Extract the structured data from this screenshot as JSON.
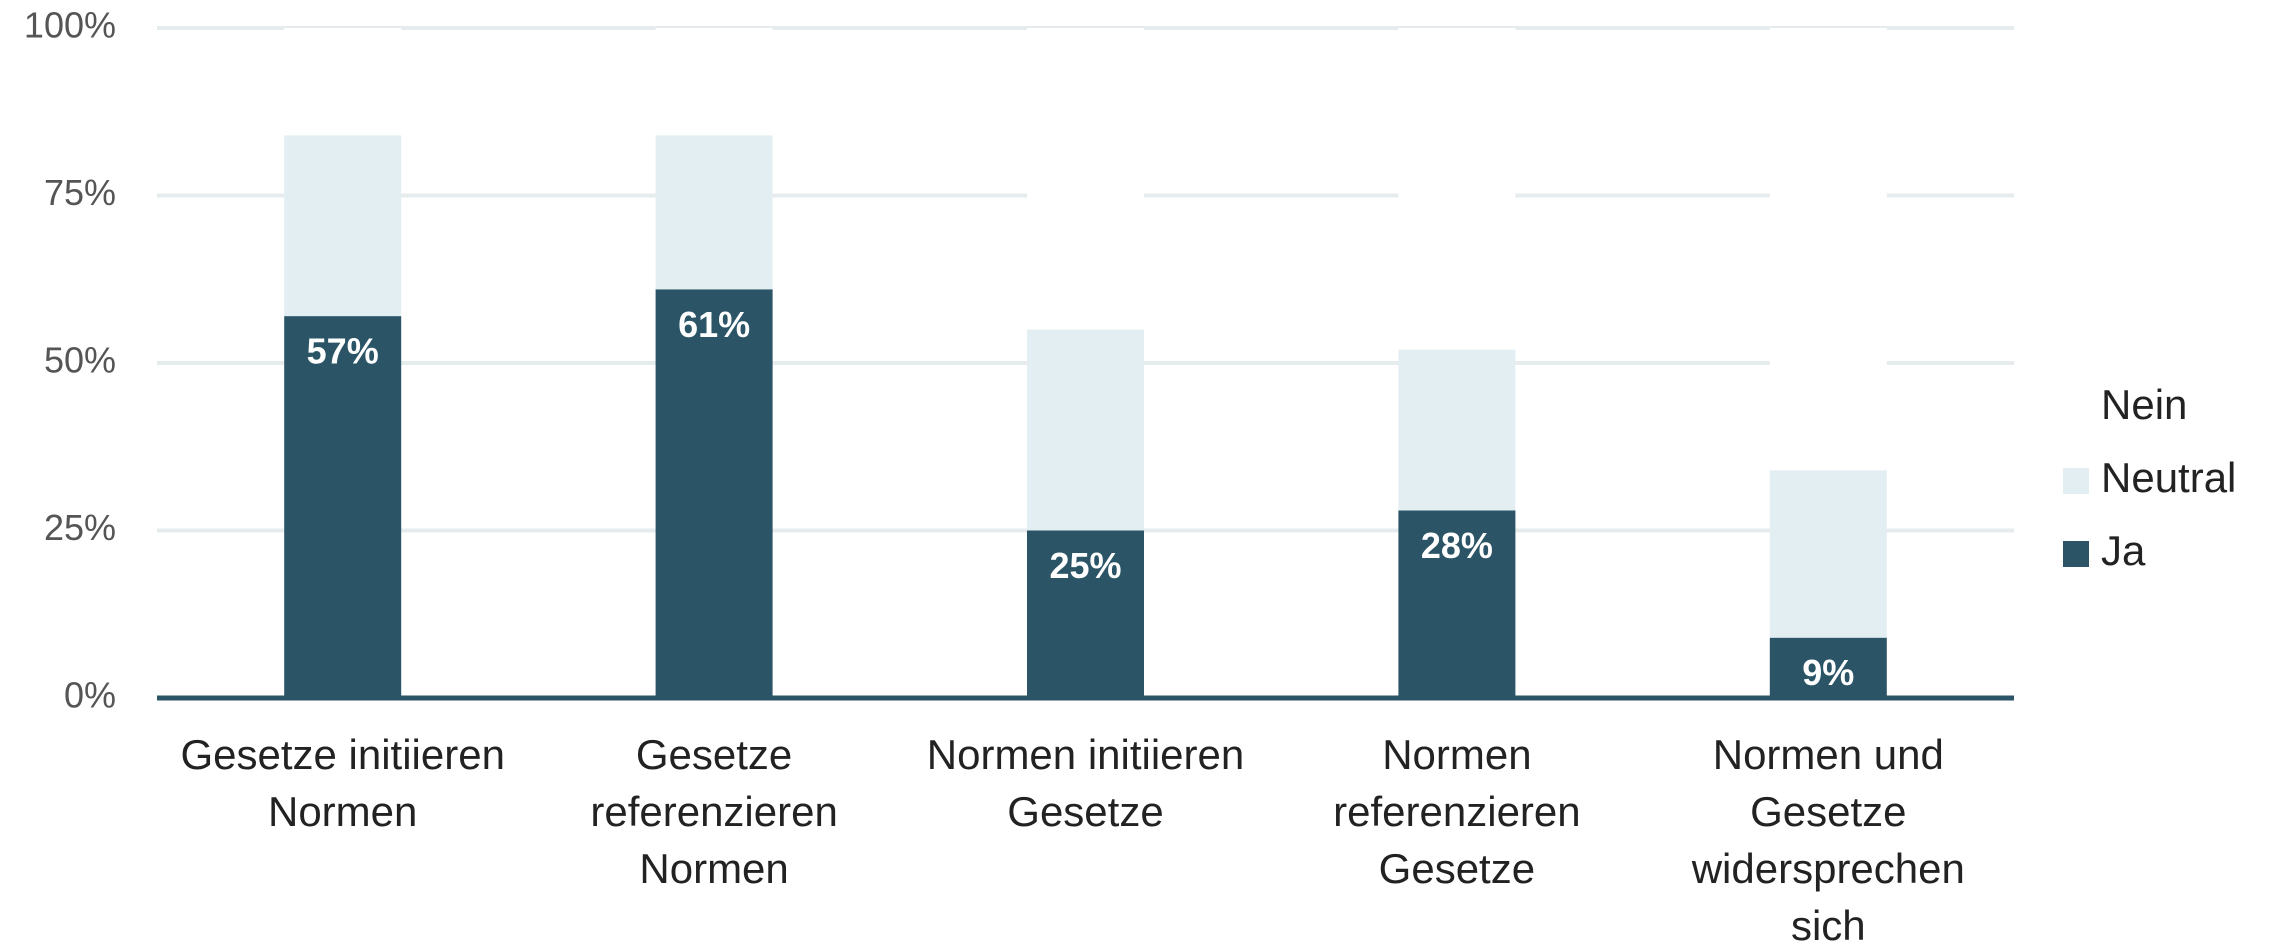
{
  "chart_data": {
    "type": "stacked_bar",
    "categories": [
      "Gesetze initiieren\nNormen",
      "Gesetze\nreferenzieren\nNormen",
      "Normen initiieren\nGesetze",
      "Normen\nreferenzieren\nGesetze",
      "Normen und\nGesetze\nwidersprechen\nsich"
    ],
    "series": [
      {
        "name": "Ja",
        "color": "#2b5566",
        "values": [
          57,
          61,
          25,
          28,
          9
        ],
        "value_labels": [
          "57%",
          "61%",
          "25%",
          "28%",
          "9%"
        ]
      },
      {
        "name": "Neutral",
        "color": "#e3eef3",
        "values": [
          27,
          23,
          30,
          24,
          25
        ]
      },
      {
        "name": "Nein",
        "color": "#ffffff",
        "values": [
          16,
          16,
          45,
          48,
          66
        ]
      }
    ],
    "legend_order": [
      "Nein",
      "Neutral",
      "Ja"
    ],
    "ylim": [
      0,
      100
    ],
    "yticks": [
      {
        "value": 0,
        "label": "0%"
      },
      {
        "value": 25,
        "label": "25%"
      },
      {
        "value": 50,
        "label": "50%"
      },
      {
        "value": 75,
        "label": "75%"
      },
      {
        "value": 100,
        "label": "100%"
      }
    ],
    "grid": true,
    "legend": "right"
  }
}
